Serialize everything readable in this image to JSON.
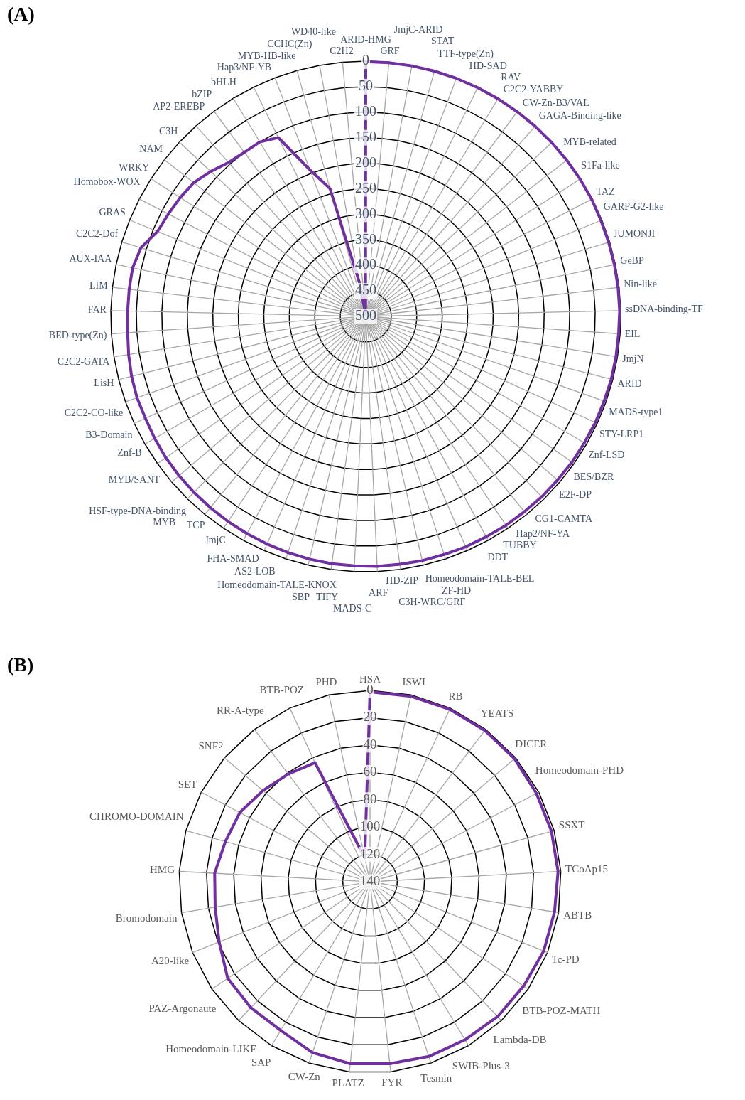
{
  "chart_data": [
    {
      "type": "radar",
      "title": "(A)",
      "categories": [
        "ARID-HMG",
        "GRF",
        "JmjC-ARID",
        "STAT",
        "TTF-type(Zn)",
        "HD-SAD",
        "RAV",
        "C2C2-YABBY",
        "CW-Zn-B3/VAL",
        "GAGA-Binding-like",
        "MYB-related",
        "S1Fa-like",
        "TAZ",
        "GARP-G2-like",
        "JUMONJI",
        "GeBP",
        "Nin-like",
        "ssDNA-binding-TF",
        "EIL",
        "JmjN",
        "ARID",
        "MADS-type1",
        "STY-LRP1",
        "Znf-LSD",
        "BES/BZR",
        "E2F-DP",
        "CG1-CAMTA",
        "Hap2/NF-YA",
        "TUBBY",
        "DDT",
        "Homeodomain-TALE-BEL",
        "ZF-HD",
        "C3H-WRC/GRF",
        "HD-ZIP",
        "ARF",
        "MADS-C",
        "TIFY",
        "SBP",
        "Homeodomain-TALE-KNOX",
        "AS2-LOB",
        "FHA-SMAD",
        "JmjC",
        "TCP",
        "MYB",
        "HSF-type-DNA-binding",
        "MYB/SANT",
        "Znf-B",
        "B3-Domain",
        "C2C2-CO-like",
        "LisH",
        "C2C2-GATA",
        "BED-type(Zn)",
        "FAR",
        "LIM",
        "AUX-IAA",
        "C2C2-Dof",
        "GRAS",
        "Homobox-WOX",
        "WRKY",
        "NAM",
        "C3H",
        "AP2-EREBP",
        "bZIP",
        "bHLH",
        "Hap3/NF-YB",
        "MYB-HB-like",
        "CCHC(Zn)",
        "WD40-like",
        "C2H2"
      ],
      "series": [
        {
          "color": "#7030a0",
          "values": [
            1,
            1,
            1,
            1,
            1,
            1,
            1,
            1,
            1,
            1,
            1,
            1,
            1,
            2,
            2,
            2,
            2,
            2,
            3,
            3,
            3,
            4,
            4,
            5,
            5,
            6,
            6,
            7,
            7,
            8,
            8,
            9,
            9,
            10,
            10,
            11,
            11,
            12,
            13,
            14,
            15,
            16,
            17,
            18,
            19,
            20,
            22,
            24,
            24,
            26,
            29,
            32,
            33,
            33,
            33,
            39,
            59,
            64,
            68,
            73,
            84,
            96,
            100,
            100,
            110,
            193,
            240,
            434,
            495
          ]
        }
      ],
      "ylim": [
        500,
        0
      ],
      "yticks": [
        0,
        50,
        100,
        150,
        200,
        250,
        300,
        350,
        400,
        450,
        500
      ],
      "grid": true,
      "legend": false,
      "marker": "none"
    },
    {
      "type": "radar",
      "title": "(B)",
      "categories": [
        "HSA",
        "ISWI",
        "RB",
        "YEATS",
        "DICER",
        "Homeodomain-PHD",
        "SSXT",
        "TCoAp15",
        "ABTB",
        "Tc-PD",
        "BTB-POZ-MATH",
        "Lambda-DB",
        "SWIB-Plus-3",
        "Tesmin",
        "FYR",
        "PLATZ",
        "CW-Zn",
        "SAP",
        "Homeodomain-LIKE",
        "PAZ-Argonaute",
        "A20-like",
        "Bromodomain",
        "HMG",
        "CHROMO-DOMAIN",
        "SET",
        "SNF2",
        "RR-A-type",
        "BTB-POZ",
        "PHD"
      ],
      "series": [
        {
          "color": "#7030a0",
          "values": [
            1,
            1,
            1,
            1,
            1,
            2,
            2,
            2,
            3,
            3,
            4,
            4,
            5,
            5,
            6,
            6,
            8,
            13,
            13,
            14,
            21,
            25,
            26,
            30,
            32,
            37,
            41,
            44,
            122
          ]
        }
      ],
      "ylim": [
        140,
        0
      ],
      "yticks": [
        0,
        20,
        40,
        60,
        80,
        100,
        120,
        140
      ],
      "grid": true,
      "legend": false,
      "marker": "none"
    }
  ]
}
